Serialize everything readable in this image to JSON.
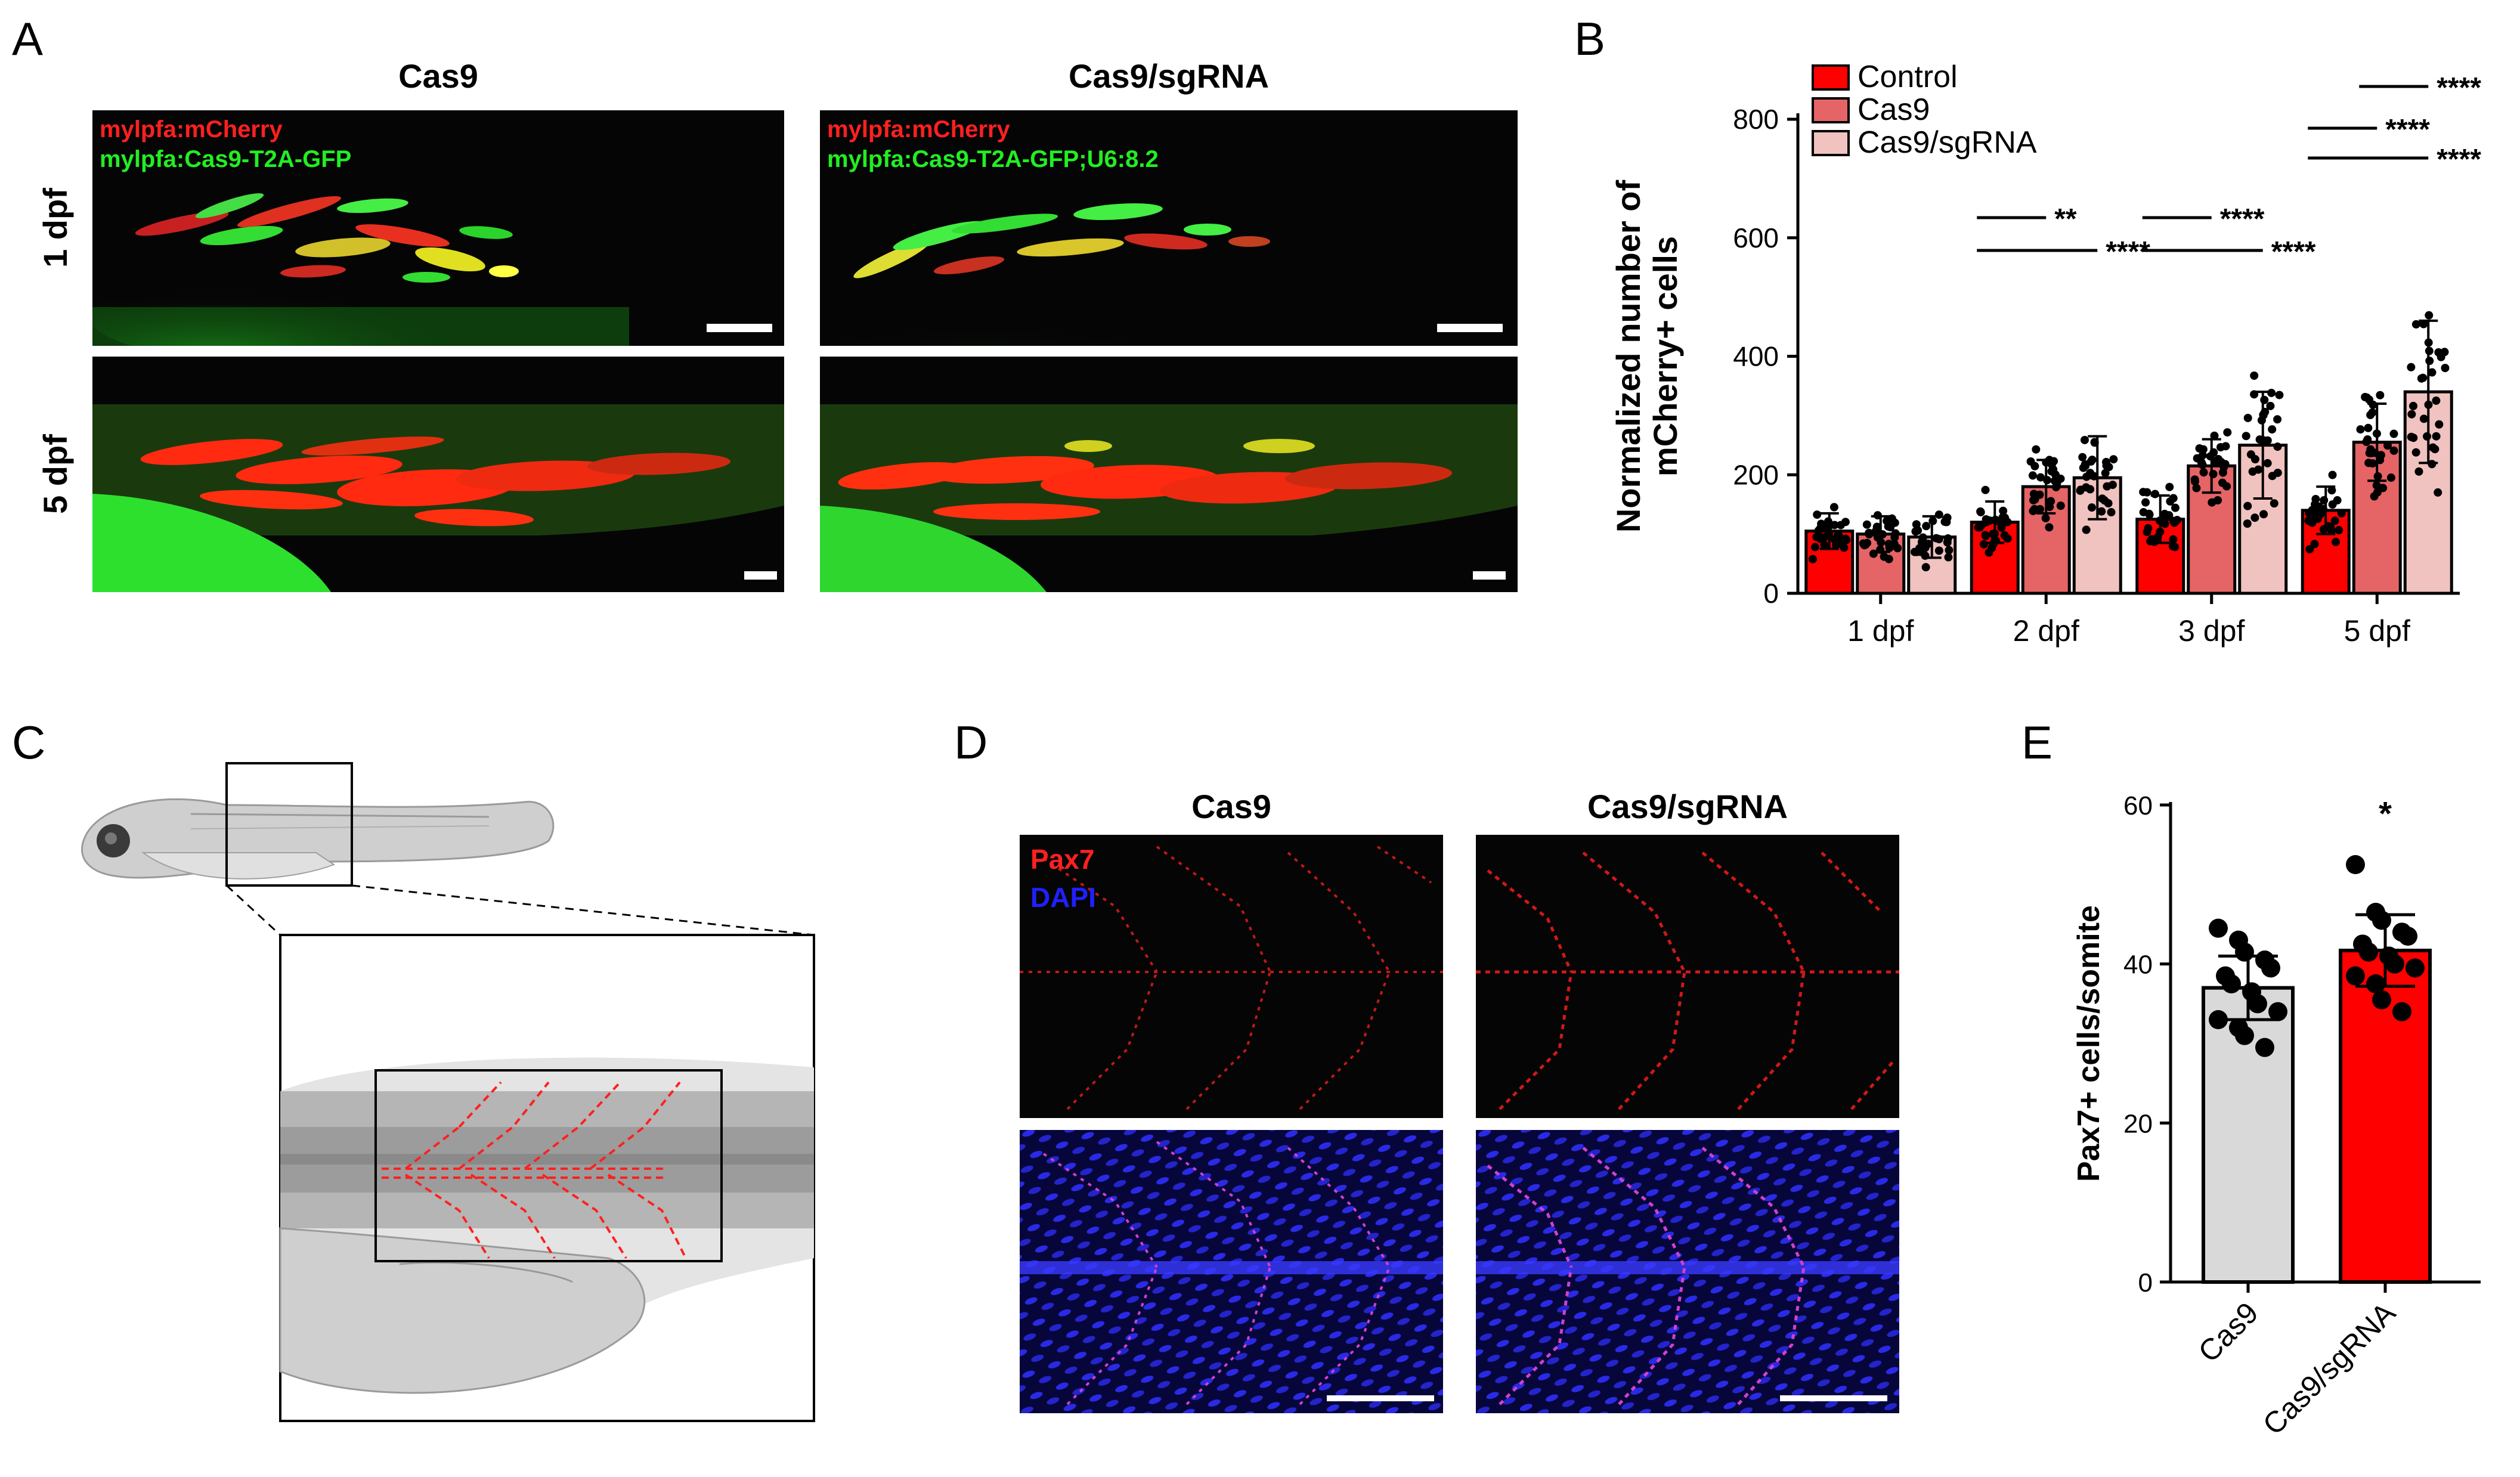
{
  "panels": {
    "A": {
      "label": "A",
      "col_titles": [
        "Cas9",
        "Cas9/sgRNA"
      ],
      "row_titles": [
        "1 dpf",
        "5 dpf"
      ],
      "overlay_left": [
        "mylpfa:mCherry",
        "mylpfa:Cas9-T2A-GFP"
      ],
      "overlay_right": [
        "mylpfa:mCherry",
        "mylpfa:Cas9-T2A-GFP;U6:8.2"
      ]
    },
    "B": {
      "label": "B"
    },
    "C": {
      "label": "C"
    },
    "D": {
      "label": "D",
      "col_titles": [
        "Cas9",
        "Cas9/sgRNA"
      ],
      "stain_labels": [
        "Pax7",
        "DAPI"
      ]
    },
    "E": {
      "label": "E"
    }
  },
  "colors": {
    "red_channel": "#ff2020",
    "green_channel": "#22ee22",
    "blue_channel": "#2020ff",
    "control": "#ff0000",
    "cas9": "#e56466",
    "cas9_sgRNA": "#f0c3c0",
    "grey_bar": "#d9d9d9"
  },
  "chart_data": [
    {
      "id": "B",
      "type": "bar",
      "ylabel": "Normalized number of mCherry+ cells",
      "xlabel": "",
      "categories": [
        "1 dpf",
        "2 dpf",
        "3 dpf",
        "5 dpf"
      ],
      "ylim": [
        0,
        800
      ],
      "yticks": [
        0,
        200,
        400,
        600,
        800
      ],
      "legend_position": "top-left",
      "series": [
        {
          "name": "Control",
          "values": [
            105,
            120,
            125,
            140
          ],
          "sd": [
            30,
            35,
            40,
            40
          ]
        },
        {
          "name": "Cas9",
          "values": [
            100,
            180,
            215,
            255
          ],
          "sd": [
            30,
            45,
            45,
            65
          ]
        },
        {
          "name": "Cas9/sgRNA",
          "values": [
            95,
            195,
            250,
            340
          ],
          "sd": [
            35,
            70,
            90,
            120
          ]
        }
      ],
      "significance": [
        {
          "category": "2 dpf",
          "from": "Control",
          "to": "Cas9",
          "label": "**"
        },
        {
          "category": "2 dpf",
          "from": "Control",
          "to": "Cas9/sgRNA",
          "label": "****"
        },
        {
          "category": "3 dpf",
          "from": "Control",
          "to": "Cas9",
          "label": "****"
        },
        {
          "category": "3 dpf",
          "from": "Control",
          "to": "Cas9/sgRNA",
          "label": "****"
        },
        {
          "category": "5 dpf",
          "from": "Cas9",
          "to": "Cas9/sgRNA",
          "label": "****"
        },
        {
          "category": "5 dpf",
          "from": "Control",
          "to": "Cas9",
          "label": "****"
        },
        {
          "category": "5 dpf",
          "from": "Control",
          "to": "Cas9/sgRNA",
          "label": "****"
        }
      ]
    },
    {
      "id": "E",
      "type": "bar",
      "ylabel": "Pax7+ cells/somite",
      "xlabel": "",
      "categories": [
        "Cas9",
        "Cas9/sgRNA"
      ],
      "values": [
        37,
        41.7
      ],
      "sd": [
        4,
        4.5
      ],
      "ylim": [
        0,
        60
      ],
      "yticks": [
        0,
        20,
        40,
        60
      ],
      "points": [
        [
          44.5,
          43,
          41.5,
          40.5,
          39.5,
          38.5,
          37.5,
          36.5,
          35,
          34,
          33,
          32,
          31,
          29.5
        ],
        [
          52.5,
          46.5,
          45.5,
          44,
          43.5,
          42.5,
          41.5,
          41,
          40,
          39.5,
          38.5,
          37.5,
          35.5,
          34
        ]
      ],
      "significance": [
        {
          "category": "Cas9/sgRNA",
          "label": "*"
        }
      ]
    }
  ]
}
